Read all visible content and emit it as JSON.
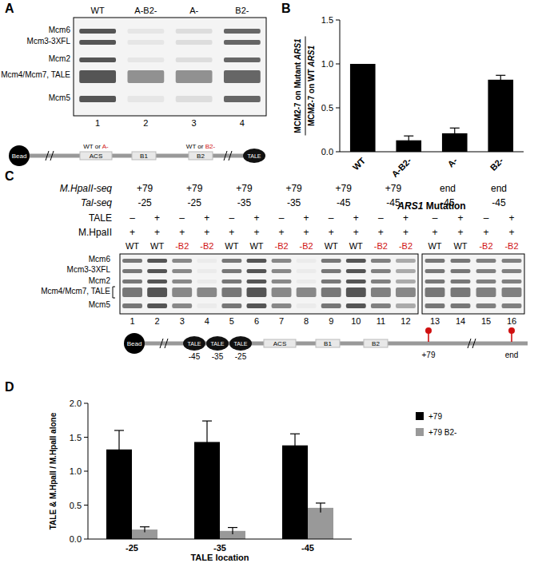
{
  "panels": [
    "A",
    "B",
    "C",
    "D"
  ],
  "gel_a": {
    "lanes": [
      "WT",
      "A-B2-",
      "A-",
      "B2-"
    ],
    "lane_numbers": [
      "1",
      "2",
      "3",
      "4"
    ],
    "proteins": [
      "Mcm6",
      "Mcm3-3XFL",
      "Mcm2",
      "Mcm4/Mcm7, TALE",
      "Mcm5"
    ],
    "diagram": {
      "bead": "Bead",
      "elements": [
        "ACS",
        "B1",
        "B2"
      ],
      "notes": [
        [
          "WT or ",
          "A-"
        ],
        [
          "WT or ",
          "B2-"
        ]
      ],
      "tale": "TALE"
    }
  },
  "gel_c": {
    "pair_rows": [
      {
        "label": "M.HpaII-seq",
        "values": [
          "+79",
          "+79",
          "+79",
          "+79",
          "+79",
          "+79",
          "end",
          "end"
        ]
      },
      {
        "label": "Tal-seq",
        "values": [
          "-25",
          "-25",
          "-35",
          "-35",
          "-45",
          "-45",
          "-45",
          "-45"
        ]
      }
    ],
    "lane_rows": [
      {
        "label": "TALE",
        "values": [
          "–",
          "+",
          "–",
          "+",
          "–",
          "+",
          "–",
          "+",
          "–",
          "+",
          "–",
          "+",
          "–",
          "+",
          "–",
          "+"
        ]
      },
      {
        "label": "M.HpaII",
        "values": [
          "+",
          "+",
          "+",
          "+",
          "+",
          "+",
          "+",
          "+",
          "+",
          "+",
          "+",
          "+",
          "+",
          "+",
          "+",
          "+"
        ]
      }
    ],
    "genotypes": [
      "WT",
      "WT",
      "-B2",
      "-B2",
      "WT",
      "WT",
      "-B2",
      "-B2",
      "WT",
      "WT",
      "-B2",
      "-B2",
      "WT",
      "WT",
      "-B2",
      "-B2"
    ],
    "lane_numbers": [
      "1",
      "2",
      "3",
      "4",
      "5",
      "6",
      "7",
      "8",
      "9",
      "10",
      "11",
      "12",
      "13",
      "14",
      "15",
      "16"
    ],
    "proteins": [
      "Mcm6",
      "Mcm3-3XFL",
      "Mcm2",
      "Mcm4/Mcm7, TALE",
      "Mcm5"
    ],
    "diagram": {
      "bead": "Bead",
      "tale": "TALE",
      "tale_positions": [
        "-45",
        "-35",
        "-25"
      ],
      "elements": [
        "ACS",
        "B1",
        "B2"
      ],
      "pins": [
        "+79",
        "end"
      ]
    }
  },
  "chart_data": [
    {
      "type": "bar",
      "y_label": [
        "MCM2-7 on Mutant ARS1",
        "MCM2-7 on WT ARS1"
      ],
      "x_label": "ARS1 Mutation",
      "categories": [
        "WT",
        "A-B2-",
        "A-",
        "B2-"
      ],
      "values": [
        1.0,
        0.13,
        0.21,
        0.82
      ],
      "errors": [
        null,
        0.05,
        0.06,
        0.05
      ],
      "color": "#000000",
      "ylim": [
        0,
        1.5
      ],
      "yticks": [
        {
          "value": 0,
          "label": "0.0"
        },
        {
          "value": 0.5,
          "label": "0.5"
        },
        {
          "value": 1,
          "label": "1.0"
        },
        {
          "value": 1.5,
          "label": "1.5"
        }
      ]
    },
    {
      "type": "bar",
      "y_label": "TALE & M.HpaII / M.HpaII alone",
      "x_label": "TALE location",
      "categories": [
        "-25",
        "-35",
        "-45"
      ],
      "series": [
        {
          "name": "+79",
          "color": "#000000",
          "values": [
            1.32,
            1.43,
            1.38
          ],
          "errors": [
            0.28,
            0.31,
            0.17
          ]
        },
        {
          "name": "+79 B2-",
          "color": "#999999",
          "values": [
            0.14,
            0.12,
            0.46
          ],
          "errors": [
            0.04,
            0.05,
            0.07
          ]
        }
      ],
      "ylim": [
        0,
        2
      ],
      "yticks": [
        {
          "value": 0,
          "label": "0.0"
        },
        {
          "value": 0.5,
          "label": "0.5"
        },
        {
          "value": 1,
          "label": "1.0"
        },
        {
          "value": 1.5,
          "label": "1.5"
        },
        {
          "value": 2,
          "label": "2.0"
        }
      ],
      "legend": "right"
    }
  ]
}
